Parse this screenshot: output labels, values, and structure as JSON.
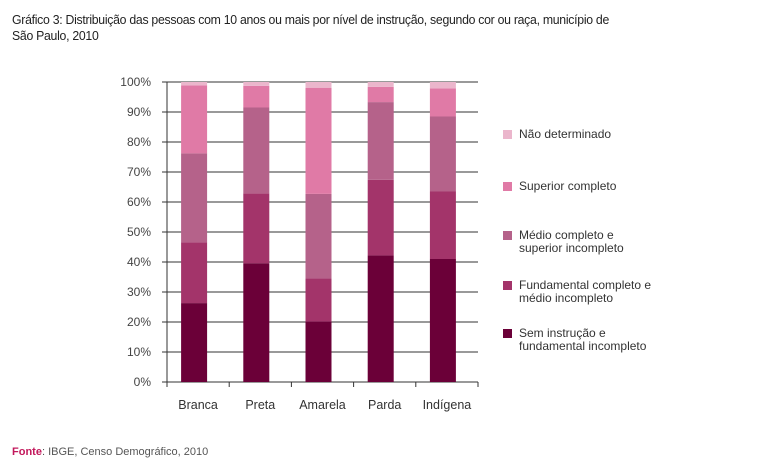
{
  "title_line1": "Gráfico 3: Distribuição das pessoas com 10 anos ou mais por nível de instrução, segundo cor ou raça, município de",
  "title_line2": "São Paulo, 2010",
  "source": {
    "label": "Fonte",
    "text": ": IBGE, Censo Demográfico, 2010"
  },
  "chart_data": {
    "type": "bar",
    "stacked": true,
    "title": "Gráfico 3: Distribuição das pessoas com 10 anos ou mais por nível de instrução, segundo cor ou raça, município de São Paulo, 2010",
    "categories": [
      "Branca",
      "Preta",
      "Amarela",
      "Parda",
      "Indígena"
    ],
    "ylim": [
      0,
      100
    ],
    "yticks": [
      "0%",
      "10%",
      "20%",
      "30%",
      "40%",
      "50%",
      "60%",
      "70%",
      "80%",
      "90%",
      "100%"
    ],
    "grid": true,
    "legend_position": "right",
    "series": [
      {
        "name": "Sem instrução e fundamental incompleto",
        "color": "#6b0038",
        "values": [
          26.3,
          39.6,
          20.2,
          42.2,
          41.0
        ]
      },
      {
        "name": "Fundamental completo e médio incompleto",
        "color": "#a3346a",
        "values": [
          20.3,
          23.3,
          14.4,
          25.2,
          22.5
        ]
      },
      {
        "name": "Médio completo e superior incompleto",
        "color": "#b5628a",
        "values": [
          29.6,
          28.6,
          28.1,
          25.9,
          25.0
        ]
      },
      {
        "name": "Superior completo",
        "color": "#e07aa6",
        "values": [
          22.7,
          7.2,
          35.4,
          5.1,
          9.4
        ]
      },
      {
        "name": "Não determinado",
        "color": "#ebb6cc",
        "values": [
          1.1,
          1.3,
          1.9,
          1.6,
          2.1
        ]
      }
    ],
    "legend": [
      {
        "line1": "Não determinado",
        "line2": ""
      },
      {
        "line1": "Superior completo",
        "line2": ""
      },
      {
        "line1": "Médio completo e",
        "line2": "superior incompleto"
      },
      {
        "line1": "Fundamental completo e",
        "line2": "médio incompleto"
      },
      {
        "line1": "Sem instrução e",
        "line2": "fundamental incompleto"
      }
    ]
  }
}
